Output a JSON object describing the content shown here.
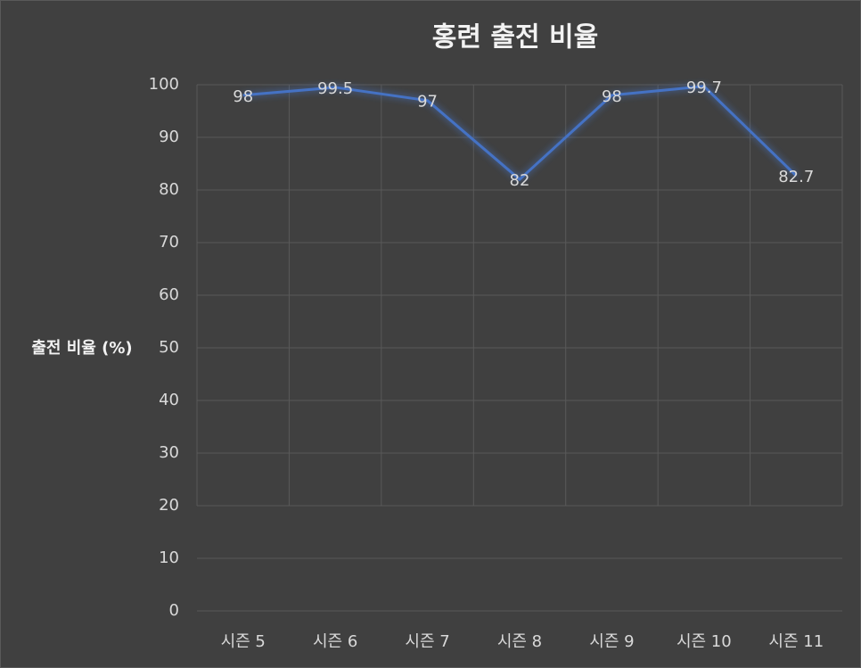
{
  "chart_data": {
    "type": "line",
    "title": "홍련 출전 비율",
    "y_label": "출전 비율 (%)",
    "categories": [
      "시즌 5",
      "시즌 6",
      "시즌 7",
      "시즌 8",
      "시즌 9",
      "시즌 10",
      "시즌 11"
    ],
    "values": [
      98,
      99.5,
      97,
      82,
      98,
      99.7,
      82.7
    ],
    "color": "#4472c4",
    "ylim": [
      0,
      100
    ],
    "yticks": [
      0,
      10,
      20,
      30,
      40,
      50,
      60,
      70,
      80,
      90,
      100
    ],
    "grid": true,
    "data_labels": true
  }
}
